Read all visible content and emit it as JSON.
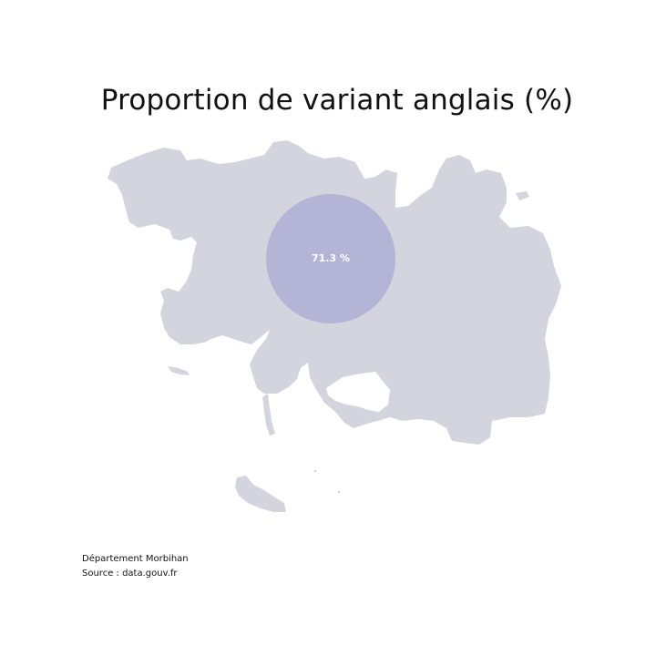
{
  "title": "Proportion de variant anglais (%)",
  "map": {
    "region_name": "Morbihan",
    "land_color": "#d4d4df",
    "bubble_color": "#a9a9d4",
    "bubble_value": 71.3,
    "bubble_label": "71.3 %"
  },
  "footer": {
    "line1": "Département Morbihan",
    "line2": "Source : data.gouv.fr"
  }
}
